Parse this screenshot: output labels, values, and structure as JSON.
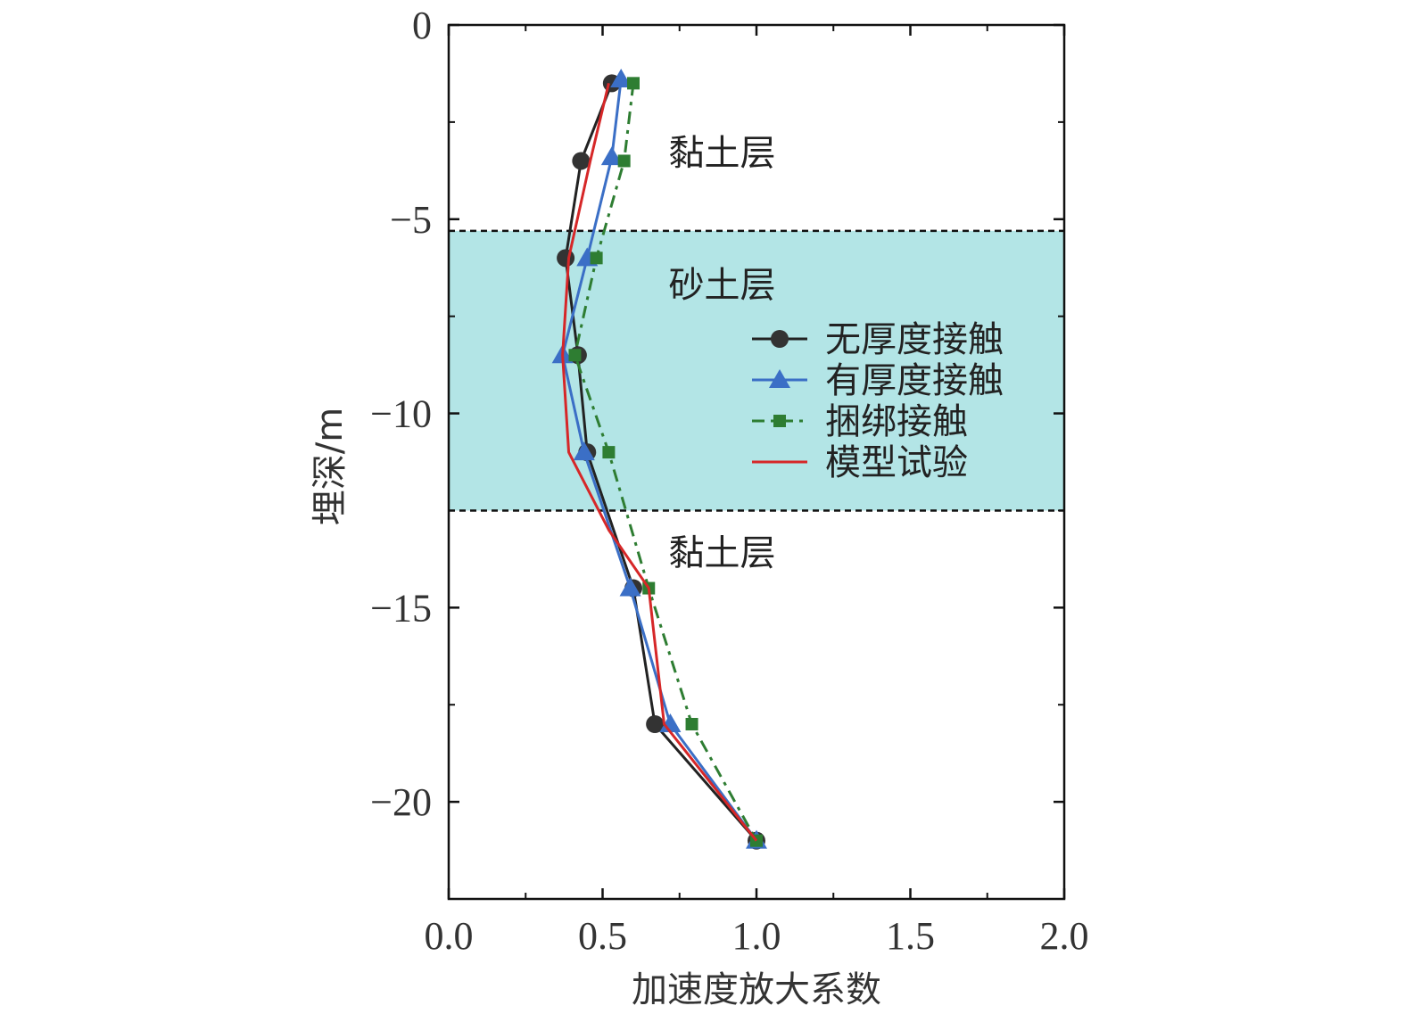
{
  "chart_data": {
    "type": "line",
    "xlabel": "加速度放大系数",
    "ylabel": "埋深/m",
    "xlim": [
      0,
      2.0
    ],
    "ylim": [
      -22.5,
      0
    ],
    "x_ticks": [
      "0.0",
      "0.5",
      "1.0",
      "1.5",
      "2.0"
    ],
    "y_ticks": [
      "0",
      "−5",
      "−10",
      "−15",
      "−20"
    ],
    "grid": false,
    "legend_position": "right-middle",
    "sand_layer": {
      "top": -5.3,
      "bottom": -12.5,
      "color": "#b3e5e6"
    },
    "layer_labels": [
      {
        "text": "黏土层",
        "x": 0.9,
        "y": -3.6
      },
      {
        "text": "砂土层",
        "x": 0.9,
        "y": -7.0
      },
      {
        "text": "黏土层",
        "x": 0.9,
        "y": -13.9
      }
    ],
    "series": [
      {
        "name": "无厚度接触",
        "color": "#222222",
        "marker": "circle",
        "dash": "",
        "points": [
          [
            0.53,
            -1.5
          ],
          [
            0.43,
            -3.5
          ],
          [
            0.38,
            -6.0
          ],
          [
            0.42,
            -8.5
          ],
          [
            0.45,
            -11.0
          ],
          [
            0.6,
            -14.5
          ],
          [
            0.67,
            -18.0
          ],
          [
            1.0,
            -21.0
          ]
        ]
      },
      {
        "name": "有厚度接触",
        "color": "#3b6fc6",
        "marker": "triangle",
        "dash": "",
        "points": [
          [
            0.56,
            -1.4
          ],
          [
            0.53,
            -3.4
          ],
          [
            0.45,
            -6.0
          ],
          [
            0.37,
            -8.5
          ],
          [
            0.44,
            -11.0
          ],
          [
            0.59,
            -14.5
          ],
          [
            0.72,
            -18.0
          ],
          [
            1.0,
            -21.0
          ]
        ]
      },
      {
        "name": "捆绑接触",
        "color": "#2e7d32",
        "marker": "square",
        "dash": "14 7 4 7",
        "points": [
          [
            0.6,
            -1.5
          ],
          [
            0.57,
            -3.5
          ],
          [
            0.48,
            -6.0
          ],
          [
            0.41,
            -8.5
          ],
          [
            0.52,
            -11.0
          ],
          [
            0.65,
            -14.5
          ],
          [
            0.79,
            -18.0
          ],
          [
            1.0,
            -21.0
          ]
        ]
      },
      {
        "name": "模型试验",
        "color": "#d62728",
        "marker": "none",
        "dash": "",
        "points": [
          [
            0.52,
            -1.5
          ],
          [
            0.46,
            -3.5
          ],
          [
            0.39,
            -6.0
          ],
          [
            0.37,
            -8.5
          ],
          [
            0.39,
            -11.0
          ],
          [
            0.52,
            -13.0
          ],
          [
            0.65,
            -14.5
          ],
          [
            0.7,
            -18.0
          ],
          [
            1.0,
            -21.0
          ]
        ]
      }
    ]
  }
}
